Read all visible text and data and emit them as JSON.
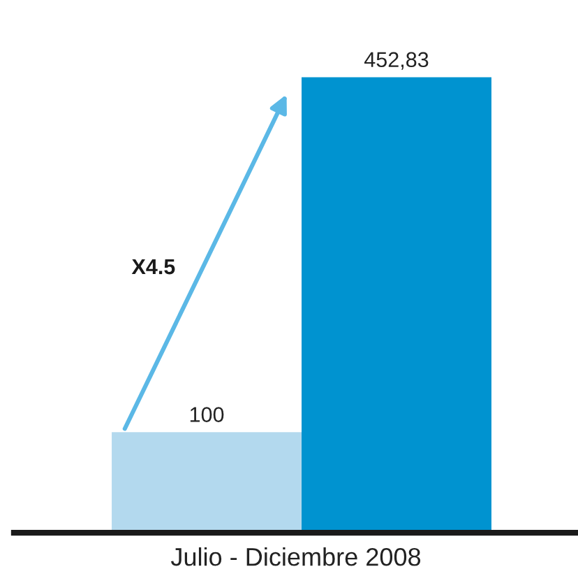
{
  "chart_data": {
    "type": "bar",
    "categories": [
      null,
      null
    ],
    "values": [
      100,
      452.83
    ],
    "value_labels": [
      "100",
      "452,83"
    ],
    "colors": [
      "#b3d9ee",
      "#0093d0"
    ],
    "xlabel": "Julio - Diciembre 2008",
    "annotations": [
      "X4.5"
    ],
    "grid": false,
    "legend": false
  }
}
